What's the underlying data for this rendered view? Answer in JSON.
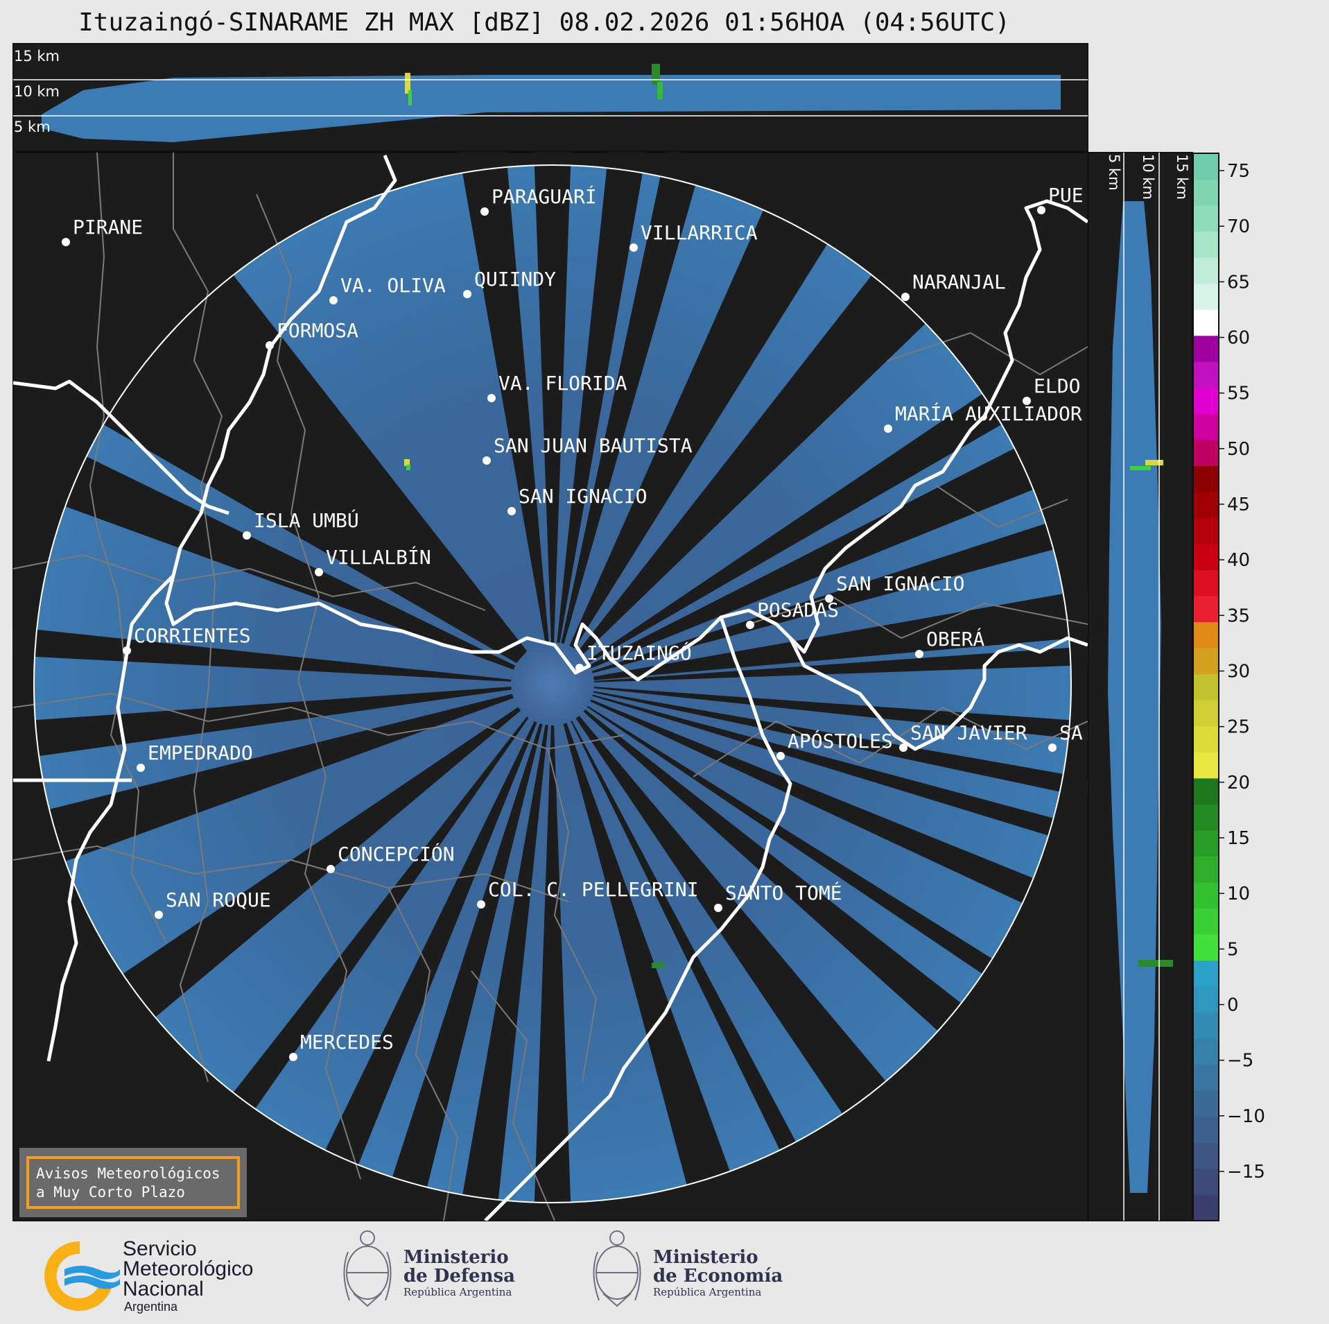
{
  "title": "Ituzaingó-SINARAME ZH MAX [dBZ] 08.02.2026 01:56HOA (04:56UTC)",
  "radar": {
    "name": "ITUZAINGÓ",
    "variable": "ZH MAX",
    "units": "dBZ"
  },
  "top_panel": {
    "altitude_labels": [
      "15 km",
      "10 km",
      "5 km"
    ]
  },
  "side_panel": {
    "altitude_labels": [
      "5 km",
      "10 km",
      "15 km"
    ]
  },
  "colorbar": {
    "ticks": [
      "75",
      "70",
      "65",
      "60",
      "55",
      "50",
      "45",
      "40",
      "35",
      "30",
      "25",
      "20",
      "15",
      "10",
      "5",
      "0",
      "−5",
      "−10",
      "−15"
    ],
    "colors": [
      "#3b3f6e",
      "#3e4a78",
      "#3f5582",
      "#3e608c",
      "#3b6a96",
      "#3975a0",
      "#3780aa",
      "#338bb3",
      "#2f96bd",
      "#2ba3c8",
      "#42e03a",
      "#3ad035",
      "#33c030",
      "#2eae2b",
      "#289c27",
      "#228a22",
      "#1d781d",
      "#e8e840",
      "#dcdc38",
      "#cfcf33",
      "#c2c22e",
      "#d4a020",
      "#e08a18",
      "#e82030",
      "#dc1020",
      "#c80010",
      "#b40008",
      "#a00000",
      "#8c0000",
      "#c00060",
      "#d000a0",
      "#e000d0",
      "#c010c0",
      "#a000a0",
      "#ffffff",
      "#d8f4e8",
      "#c0ecd8",
      "#a8e4c8",
      "#90dcb8",
      "#80d4b0",
      "#70ccac"
    ]
  },
  "places": [
    {
      "name": "PIRANE"
    },
    {
      "name": "PARAGUARÍ"
    },
    {
      "name": "VILLARRICA"
    },
    {
      "name": "QUIINDY"
    },
    {
      "name": "VA. OLIVA"
    },
    {
      "name": "FORMOSA"
    },
    {
      "name": "NARANJAL"
    },
    {
      "name": "PUE"
    },
    {
      "name": "ELDO"
    },
    {
      "name": "MARÍA AUXILIADOR"
    },
    {
      "name": "VA. FLORIDA"
    },
    {
      "name": "SAN JUAN BAUTISTA"
    },
    {
      "name": "SAN IGNACIO"
    },
    {
      "name": "ISLA UMBÚ"
    },
    {
      "name": "VILLALBÍN"
    },
    {
      "name": "SAN IGNACIO"
    },
    {
      "name": "POSADAS"
    },
    {
      "name": "CORRIENTES"
    },
    {
      "name": "ITUZAINGÓ"
    },
    {
      "name": "OBERÁ"
    },
    {
      "name": "EMPEDRADO"
    },
    {
      "name": "APÓSTOLES"
    },
    {
      "name": "SAN JAVIER"
    },
    {
      "name": "SA"
    },
    {
      "name": "CONCEPCIÓN"
    },
    {
      "name": "COL. C. PELLEGRINI"
    },
    {
      "name": "SANTO TOMÉ"
    },
    {
      "name": "SAN ROQUE"
    },
    {
      "name": "MERCEDES"
    }
  ],
  "notice": {
    "line1": "Avisos Meteorológicos",
    "line2": "a Muy Corto Plazo"
  },
  "logos": {
    "smn": {
      "line1": "Servicio",
      "line2": "Meteorológico",
      "line3": "Nacional",
      "line4": "Argentina"
    },
    "defensa": {
      "line1": "Ministerio",
      "line2": "de Defensa",
      "line3": "República Argentina"
    },
    "economia": {
      "line1": "Ministerio",
      "line2": "de Economía",
      "line3": "República Argentina"
    }
  }
}
